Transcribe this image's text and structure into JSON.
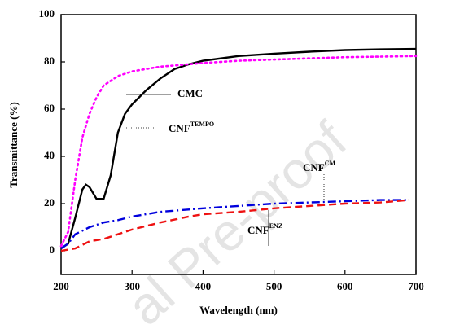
{
  "chart_data": {
    "type": "line",
    "xlabel": "Wavelength (nm)",
    "ylabel": "Transmittance (%)",
    "xlim": [
      200,
      700
    ],
    "ylim": [
      -10,
      100
    ],
    "xticks": [
      200,
      300,
      400,
      500,
      600,
      700
    ],
    "yticks": [
      0,
      20,
      40,
      60,
      80,
      100
    ],
    "watermark": "al Pre-proof",
    "series": [
      {
        "color": "#000000",
        "dash": "solid",
        "x": [
          200,
          210,
          220,
          230,
          235,
          240,
          250,
          260,
          270,
          280,
          290,
          300,
          320,
          340,
          360,
          380,
          400,
          450,
          500,
          550,
          600,
          650,
          700
        ],
        "values": [
          1,
          3,
          14,
          26,
          28,
          27,
          22,
          22,
          32,
          50,
          58,
          62,
          68,
          73,
          77,
          79,
          80.5,
          82.5,
          83.5,
          84.3,
          85,
          85.3,
          85.5
        ]
      },
      {
        "color": "#ff00ff",
        "dash": "dot",
        "x": [
          200,
          210,
          220,
          230,
          240,
          250,
          260,
          280,
          300,
          340,
          400,
          450,
          500,
          600,
          700
        ],
        "values": [
          2,
          8,
          30,
          48,
          58,
          65,
          70,
          74,
          76,
          78,
          79.5,
          80.5,
          81,
          82,
          82.5
        ]
      },
      {
        "color": "#0000dd",
        "dash": "dashdot",
        "x": [
          200,
          210,
          220,
          240,
          260,
          280,
          300,
          340,
          400,
          450,
          500,
          550,
          600,
          650,
          690
        ],
        "values": [
          1,
          3,
          7,
          10,
          12,
          13,
          14.5,
          16.5,
          18,
          19,
          20,
          20.5,
          21,
          21.5,
          21.5
        ]
      },
      {
        "color": "#ee1111",
        "dash": "dash",
        "x": [
          200,
          220,
          240,
          260,
          280,
          300,
          340,
          380,
          400,
          450,
          500,
          550,
          600,
          650,
          690
        ],
        "values": [
          0,
          1,
          4,
          5,
          7,
          9,
          12,
          14.5,
          15.5,
          16.5,
          18,
          19,
          20,
          20.5,
          21.5
        ]
      }
    ],
    "annotations": [
      {
        "text": "CMC"
      },
      {
        "text": "CNF",
        "sup": "TEMPO"
      },
      {
        "text": "CNF",
        "sup": "CM"
      },
      {
        "text": "CNF",
        "sup": "ENZ"
      }
    ]
  }
}
